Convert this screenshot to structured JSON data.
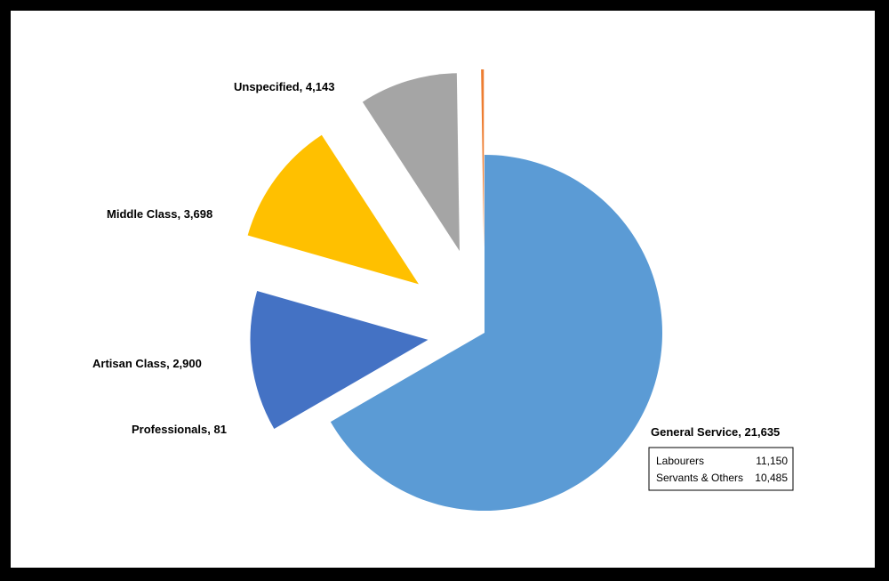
{
  "chart_data": {
    "type": "pie",
    "slices": [
      {
        "label": "General Service",
        "value": 21635,
        "value_text": "21,635",
        "color": "#5B9BD5"
      },
      {
        "label": "Unspecified",
        "value": 4143,
        "value_text": "4,143",
        "color": "#4472C4"
      },
      {
        "label": "Middle Class",
        "value": 3698,
        "value_text": "3,698",
        "color": "#FFC000"
      },
      {
        "label": "Artisan Class",
        "value": 2900,
        "value_text": "2,900",
        "color": "#A5A5A5"
      },
      {
        "label": "Professionals",
        "value": 81,
        "value_text": "81",
        "color": "#ED7D31"
      }
    ],
    "breakdown": {
      "parent": "General Service",
      "rows": [
        {
          "label": "Labourers",
          "value_text": "11,150"
        },
        {
          "label": "Servants & Others",
          "value_text": "10,485"
        }
      ]
    },
    "legend": "none"
  }
}
